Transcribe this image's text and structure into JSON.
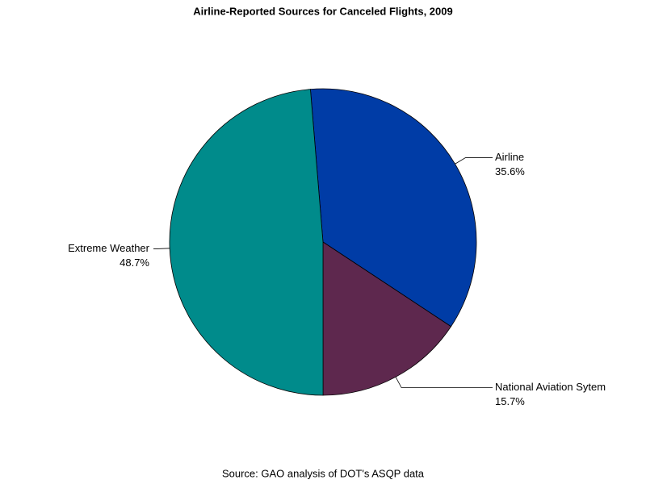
{
  "chart_data": {
    "type": "pie",
    "title": "Airline-Reported Sources for Canceled Flights, 2009",
    "source": "Source: GAO analysis of DOT's ASQP data",
    "categories": [
      "Airline",
      "National Aviation Sytem",
      "Extreme Weather"
    ],
    "values": [
      35.6,
      15.7,
      48.7
    ],
    "value_labels": [
      "35.6%",
      "15.7%",
      "48.7%"
    ],
    "colors": [
      "#003ca6",
      "#5e284e",
      "#008b8b"
    ]
  }
}
